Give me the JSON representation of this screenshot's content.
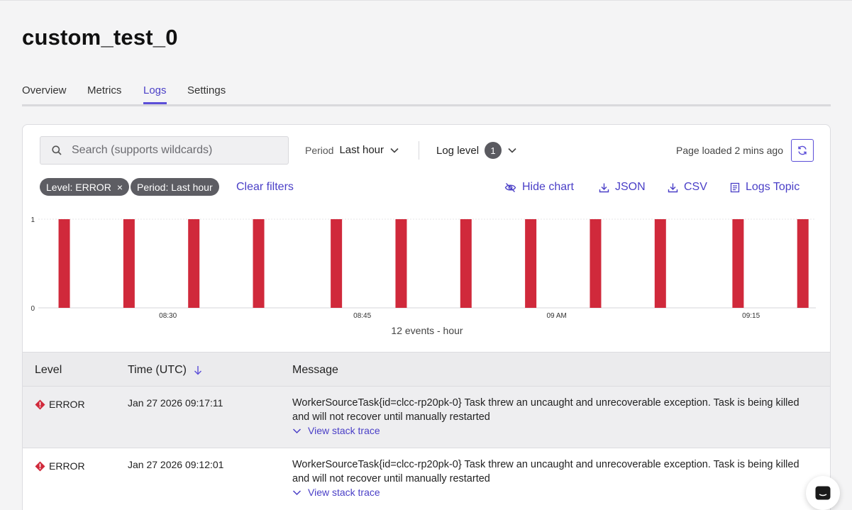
{
  "page": {
    "title": "custom_test_0"
  },
  "tabs": [
    {
      "label": "Overview"
    },
    {
      "label": "Metrics"
    },
    {
      "label": "Logs",
      "active": true
    },
    {
      "label": "Settings"
    }
  ],
  "toolbar": {
    "search_placeholder": "Search (supports wildcards)",
    "period_label": "Period",
    "period_value": "Last hour",
    "log_level_label": "Log level",
    "log_level_count": "1",
    "page_loaded": "Page loaded 2 mins ago"
  },
  "filters": {
    "chips": [
      "Level: ERROR",
      "Period: Last hour"
    ],
    "clear_label": "Clear filters"
  },
  "actions": {
    "hide_chart": "Hide chart",
    "json": "JSON",
    "csv": "CSV",
    "logs_topic": "Logs Topic"
  },
  "chart_data": {
    "type": "bar",
    "y_ticks": [
      "1",
      "0"
    ],
    "x_ticks": [
      "08:30",
      "08:45",
      "09 AM",
      "09:15"
    ],
    "ylim": [
      0,
      1
    ],
    "xlim_minutes": [
      8.33,
      9.33
    ],
    "bar_times": [
      "08:22",
      "08:27",
      "08:32",
      "08:37",
      "08:43",
      "08:48",
      "08:53",
      "08:58",
      "09:03",
      "09:08",
      "09:14",
      "09:19"
    ],
    "values": [
      1,
      1,
      1,
      1,
      1,
      1,
      1,
      1,
      1,
      1,
      1,
      1
    ],
    "caption": "12 events - hour",
    "bar_color": "#d0293b",
    "grid": true
  },
  "table": {
    "headers": {
      "level": "Level",
      "time": "Time (UTC)",
      "message": "Message"
    },
    "rows": [
      {
        "level": "ERROR",
        "time": "Jan 27 2026 09:17:11",
        "message": "WorkerSourceTask{id=clcc-rp20pk-0} Task threw an uncaught and unrecoverable exception. Task is being killed and will not recover until manually restarted",
        "trace_label": "View stack trace"
      },
      {
        "level": "ERROR",
        "time": "Jan 27 2026 09:12:01",
        "message": "WorkerSourceTask{id=clcc-rp20pk-0} Task threw an uncaught and unrecoverable exception. Task is being killed and will not recover until manually restarted",
        "trace_label": "View stack trace"
      }
    ]
  },
  "colors": {
    "accent": "#5b4ed8",
    "error": "#d0293b"
  }
}
